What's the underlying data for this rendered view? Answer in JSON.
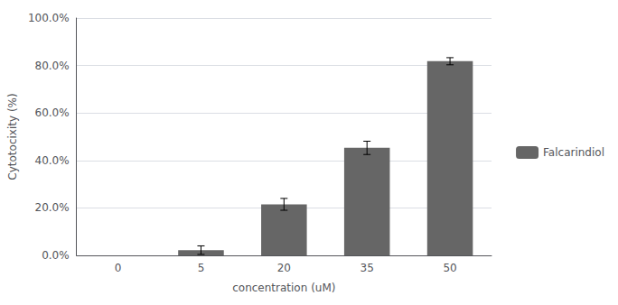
{
  "chart_data": {
    "type": "bar",
    "categories": [
      0,
      5,
      20,
      35,
      50
    ],
    "series": [
      {
        "name": "Falcarindiol",
        "color": "#666666",
        "values": [
          0.0,
          0.022,
          0.215,
          0.453,
          0.818
        ],
        "errors": [
          0.0,
          0.018,
          0.025,
          0.028,
          0.015
        ]
      }
    ],
    "xlabel": "concentration (uM)",
    "ylabel": "Cytotocixity (%)",
    "ylim": [
      0,
      1.0
    ],
    "yticks": [
      {
        "value": 0.0,
        "label": "0.0%"
      },
      {
        "value": 0.2,
        "label": "20.0%"
      },
      {
        "value": 0.4,
        "label": "40.0%"
      },
      {
        "value": 0.6,
        "label": "60.0%"
      },
      {
        "value": 0.8,
        "label": "80.0%"
      },
      {
        "value": 1.0,
        "label": "100.0%"
      }
    ],
    "grid": true,
    "legend": "right"
  }
}
